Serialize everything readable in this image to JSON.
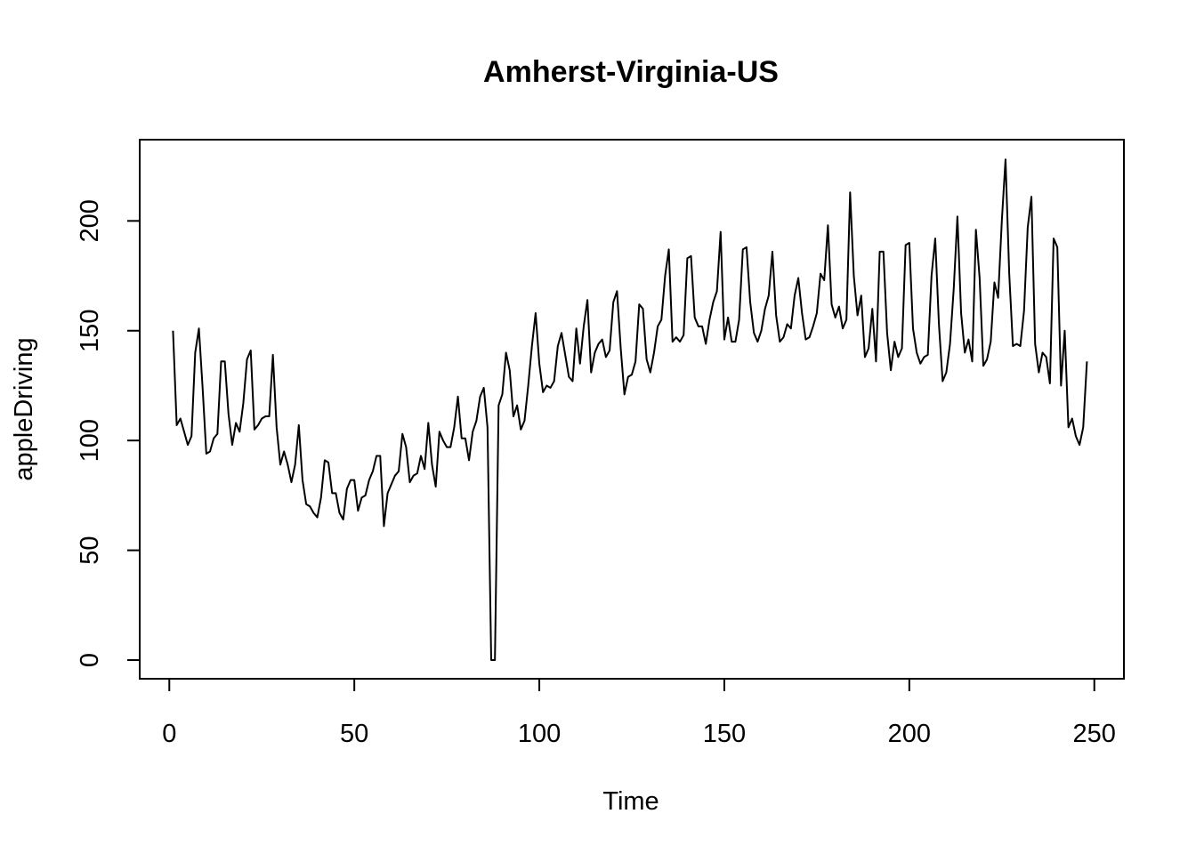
{
  "chart_data": {
    "type": "line",
    "title": "Amherst-Virginia-US",
    "xlabel": "Time",
    "ylabel": "appleDriving",
    "xlim": [
      -8,
      258
    ],
    "ylim": [
      -8.5,
      237
    ],
    "x_ticks": [
      0,
      50,
      100,
      150,
      200,
      250
    ],
    "y_ticks": [
      0,
      50,
      100,
      150,
      200
    ],
    "grid": false,
    "x_start": 1,
    "series": [
      {
        "values": [
          150,
          107,
          110,
          104,
          98,
          102,
          140,
          151,
          124,
          94,
          95,
          101,
          103,
          136,
          136,
          112,
          98,
          108,
          104,
          117,
          137,
          141,
          105,
          107,
          110,
          111,
          111,
          139,
          106,
          89,
          95,
          89,
          81,
          89,
          107,
          82,
          71,
          70,
          67,
          65,
          74,
          91,
          90,
          76,
          76,
          67,
          64,
          78,
          82,
          82,
          68,
          74,
          75,
          82,
          86,
          93,
          93,
          61,
          76,
          80,
          84,
          86,
          103,
          97,
          81,
          84,
          85,
          93,
          87,
          108,
          89,
          79,
          104,
          100,
          97,
          97,
          106,
          120,
          101,
          101,
          91,
          104,
          109,
          120,
          124,
          106,
          0,
          0,
          116,
          121,
          140,
          132,
          111,
          116,
          105,
          109,
          125,
          143,
          158,
          135,
          122,
          125,
          124,
          127,
          143,
          149,
          139,
          129,
          127,
          151,
          135,
          152,
          164,
          131,
          140,
          144,
          146,
          138,
          141,
          163,
          168,
          142,
          121,
          129,
          130,
          136,
          162,
          160,
          137,
          131,
          140,
          152,
          155,
          175,
          187,
          145,
          147,
          145,
          148,
          183,
          184,
          156,
          152,
          152,
          144,
          155,
          163,
          168,
          195,
          146,
          156,
          145,
          145,
          155,
          187,
          188,
          163,
          149,
          145,
          150,
          160,
          166,
          186,
          157,
          145,
          147,
          153,
          151,
          166,
          174,
          158,
          146,
          147,
          152,
          158,
          176,
          173,
          198,
          162,
          156,
          161,
          151,
          155,
          213,
          175,
          157,
          166,
          138,
          142,
          160,
          136,
          186,
          186,
          149,
          132,
          145,
          138,
          142,
          189,
          190,
          151,
          140,
          135,
          138,
          139,
          175,
          192,
          153,
          127,
          131,
          144,
          169,
          202,
          158,
          140,
          146,
          136,
          196,
          174,
          134,
          137,
          145,
          172,
          165,
          200,
          228,
          176,
          143,
          144,
          143,
          159,
          197,
          211,
          144,
          131,
          140,
          138,
          126,
          192,
          188,
          125,
          150,
          106,
          110,
          102,
          98,
          106,
          136
        ]
      }
    ]
  }
}
